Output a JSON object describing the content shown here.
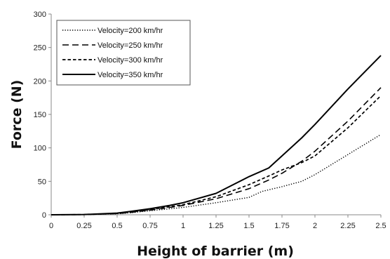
{
  "chart_data": {
    "type": "line",
    "title": "",
    "xlabel": "Height of barrier (m)",
    "ylabel": "Force (N)",
    "xlim": [
      0,
      2.5
    ],
    "ylim": [
      0,
      300
    ],
    "x_ticks": [
      "0",
      "0.25",
      "0.5",
      "0.75",
      "1",
      "1.25",
      "1.5",
      "1.75",
      "2",
      "2.25",
      "2.5"
    ],
    "y_ticks": [
      "0",
      "50",
      "100",
      "150",
      "200",
      "250",
      "300"
    ],
    "grid": false,
    "legend_position": "top-left",
    "series": [
      {
        "name": "Velocity=200 km/hr",
        "style": "dotted",
        "x": [
          0,
          0.25,
          0.5,
          0.6,
          0.75,
          0.9,
          1.0,
          1.25,
          1.5,
          1.6,
          1.75,
          1.9,
          2.0,
          2.25,
          2.5
        ],
        "y": [
          0,
          0.3,
          1.5,
          3,
          6,
          9,
          11,
          18,
          26,
          35,
          42,
          50,
          60,
          90,
          120
        ]
      },
      {
        "name": "Velocity=250 km/hr",
        "style": "long-dash",
        "x": [
          0,
          0.25,
          0.5,
          0.6,
          0.75,
          0.9,
          1.0,
          1.25,
          1.5,
          1.65,
          1.75,
          1.9,
          2.0,
          2.25,
          2.5
        ],
        "y": [
          0,
          0.3,
          1.8,
          3.5,
          7,
          11,
          14,
          24,
          39,
          52,
          62,
          80,
          95,
          140,
          190
        ]
      },
      {
        "name": "Velocity=300 km/hr",
        "style": "dashed",
        "x": [
          0,
          0.25,
          0.5,
          0.6,
          0.75,
          0.9,
          1.0,
          1.25,
          1.5,
          1.65,
          1.75,
          1.9,
          2.0,
          2.25,
          2.5
        ],
        "y": [
          0,
          0.3,
          2,
          4,
          8,
          12,
          15,
          27,
          45,
          58,
          67,
          78,
          88,
          130,
          178
        ]
      },
      {
        "name": "Velocity=350 km/hr",
        "style": "solid",
        "x": [
          0,
          0.25,
          0.5,
          0.6,
          0.75,
          0.9,
          1.0,
          1.25,
          1.5,
          1.65,
          1.75,
          1.9,
          2.0,
          2.25,
          2.5
        ],
        "y": [
          0,
          0.4,
          2.5,
          5,
          9,
          14,
          18,
          32,
          57,
          70,
          88,
          115,
          135,
          188,
          238
        ]
      }
    ]
  }
}
